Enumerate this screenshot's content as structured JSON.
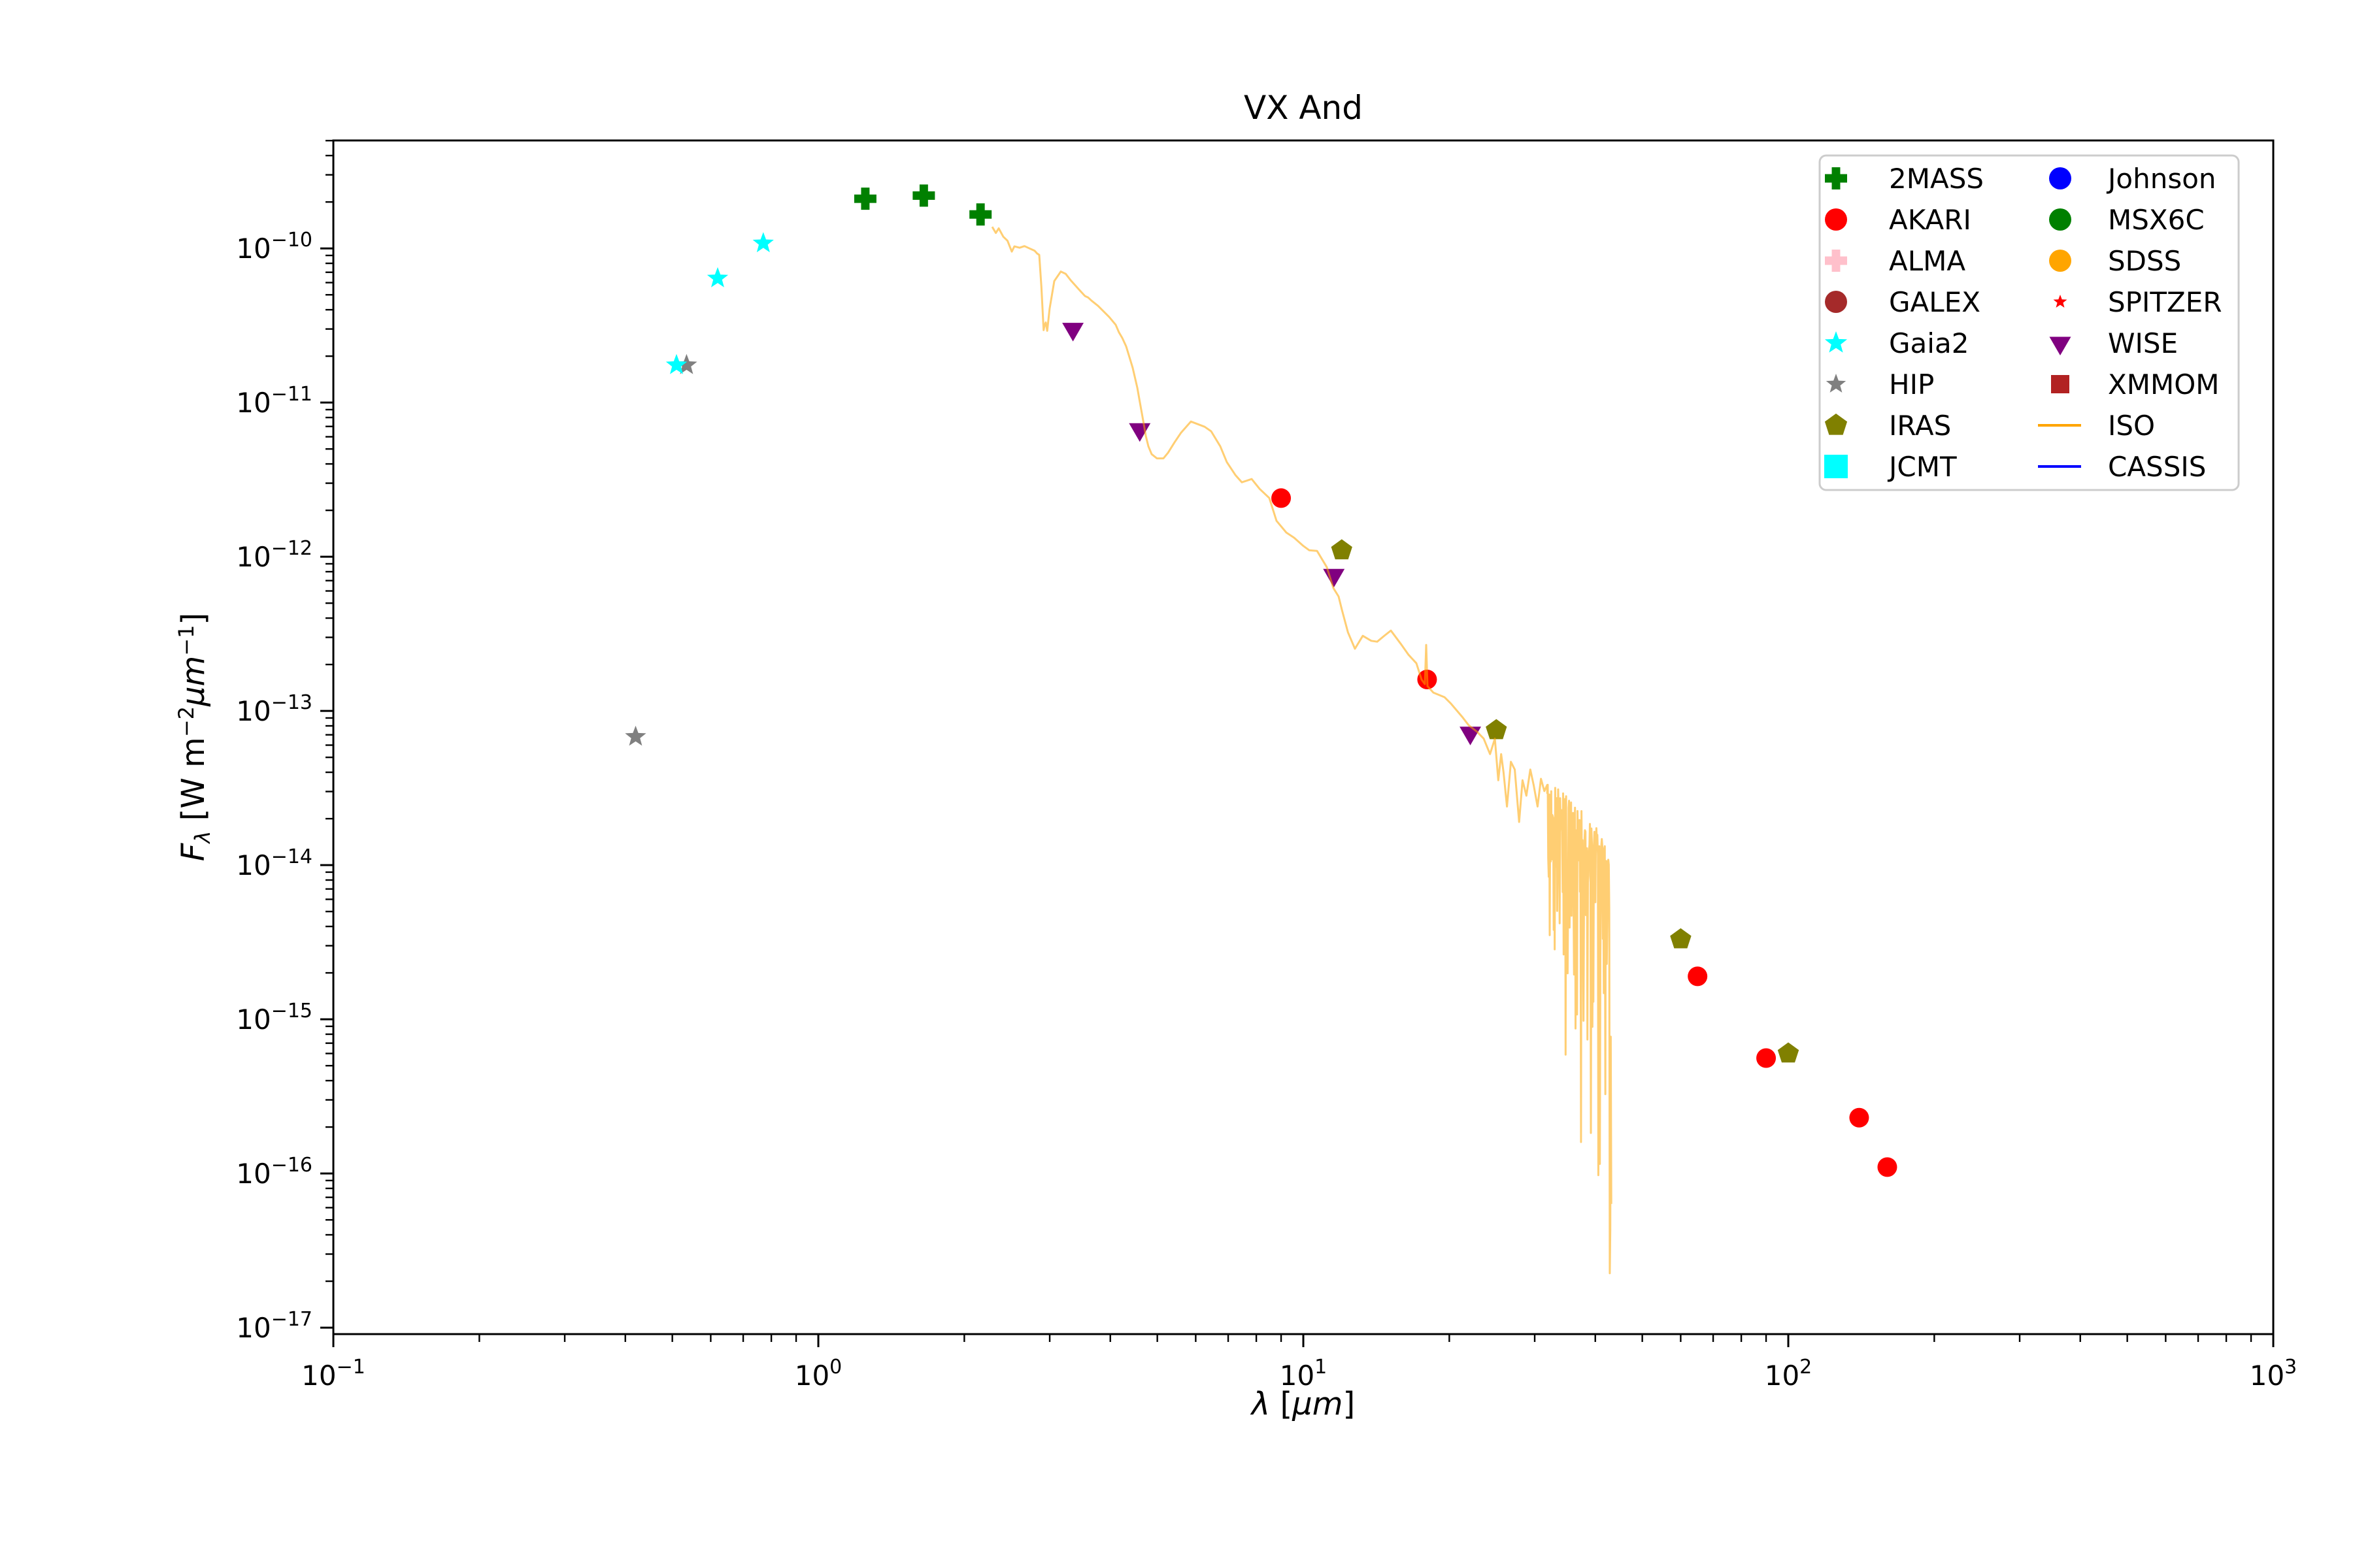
{
  "title": "VX And",
  "colors": {
    "background": "#ffffff",
    "axis": "#000000",
    "legend_border": "#cccccc",
    "iso_orange": "#ffa500",
    "cassis_blue": "#0000ff"
  },
  "axes": {
    "xlabel_parts": [
      {
        "t": "λ",
        "i": 1
      },
      {
        "t": " ["
      },
      {
        "t": "μm",
        "i": 1
      },
      {
        "t": "]"
      }
    ],
    "ylabel_parts": [
      {
        "t": "F",
        "i": 1
      },
      {
        "t": "λ",
        "v": "sub",
        "i": 1
      },
      {
        "t": " [W m"
      },
      {
        "t": "−2",
        "v": "sup"
      },
      {
        "t": "μm",
        "i": 1
      },
      {
        "t": "−1",
        "v": "sup"
      },
      {
        "t": "]"
      }
    ],
    "x_tick_base": "10",
    "x_tick_exponents": [
      -1,
      0,
      1,
      2,
      3
    ],
    "y_tick_base": "10",
    "y_tick_exponents": [
      -10,
      -11,
      -12,
      -13,
      -14,
      -15,
      -16,
      -17
    ],
    "xlim_log": [
      -1,
      3
    ],
    "ylim_log": [
      -17.042,
      -9.3
    ]
  },
  "legend": {
    "columns": [
      [
        {
          "label": "2MASS",
          "marker": "plus",
          "color": "#008000",
          "size": 34
        },
        {
          "label": "AKARI",
          "marker": "circle",
          "color": "#ff0000",
          "size": 17
        },
        {
          "label": "ALMA",
          "marker": "plus",
          "color": "#ffc0cb",
          "size": 34
        },
        {
          "label": "GALEX",
          "marker": "circle",
          "color": "#a52a2a",
          "size": 17
        },
        {
          "label": "Gaia2",
          "marker": "star",
          "color": "#00ffff",
          "size": 18
        },
        {
          "label": "HIP",
          "marker": "star",
          "color": "#808080",
          "size": 16
        },
        {
          "label": "IRAS",
          "marker": "pentagon",
          "color": "#808000",
          "size": 18
        },
        {
          "label": "JCMT",
          "marker": "square",
          "color": "#00ffff",
          "size": 36
        }
      ],
      [
        {
          "label": "Johnson",
          "marker": "circle",
          "color": "#0000ff",
          "size": 17
        },
        {
          "label": "MSX6C",
          "marker": "circle",
          "color": "#008000",
          "size": 17
        },
        {
          "label": "SDSS",
          "marker": "circle",
          "color": "#ffa500",
          "size": 17
        },
        {
          "label": "SPITZER",
          "marker": "star",
          "color": "#ff0000",
          "size": 11
        },
        {
          "label": "WISE",
          "marker": "triangle-down",
          "color": "#800080",
          "size": 19
        },
        {
          "label": "XMMOM",
          "marker": "square",
          "color": "#b22222",
          "size": 28
        },
        {
          "label": "ISO",
          "marker": "line",
          "color": "#ffa500",
          "size": 4
        },
        {
          "label": "CASSIS",
          "marker": "line",
          "color": "#0000ff",
          "size": 4
        }
      ]
    ]
  },
  "chart_data": {
    "type": "scatter",
    "x_scale": "log",
    "y_scale": "log",
    "xlabel": "λ [μm]",
    "ylabel": "F_λ [W m^-2 μm^-1]",
    "xlim": [
      0.1,
      1000
    ],
    "ylim": [
      9.1e-18,
      5e-10
    ],
    "grid": false,
    "legend_position": "upper right",
    "series": [
      {
        "name": "2MASS",
        "marker": "plus",
        "color": "#008000",
        "points": [
          [
            1.25,
            2.1e-10
          ],
          [
            1.65,
            2.2e-10
          ],
          [
            2.16,
            1.66e-10
          ]
        ]
      },
      {
        "name": "AKARI",
        "marker": "circle",
        "color": "#ff0000",
        "points": [
          [
            9.0,
            2.4e-12
          ],
          [
            18.0,
            1.6e-13
          ],
          [
            65.0,
            1.9e-15
          ],
          [
            90.0,
            5.6e-16
          ],
          [
            140.0,
            2.3e-16
          ],
          [
            160.0,
            1.1e-16
          ]
        ]
      },
      {
        "name": "HIP",
        "marker": "star",
        "color": "#808080",
        "points": [
          [
            0.42,
            6.8e-14
          ],
          [
            0.535,
            1.75e-11
          ]
        ]
      },
      {
        "name": "Gaia2",
        "marker": "star",
        "color": "#00ffff",
        "points": [
          [
            0.51,
            1.75e-11
          ],
          [
            0.62,
            6.4e-11
          ],
          [
            0.77,
            1.08e-10
          ]
        ]
      },
      {
        "name": "IRAS",
        "marker": "pentagon",
        "color": "#808000",
        "points": [
          [
            12.0,
            1.1e-12
          ],
          [
            25.0,
            7.5e-14
          ],
          [
            60.0,
            3.3e-15
          ],
          [
            100.0,
            6e-16
          ]
        ]
      },
      {
        "name": "WISE",
        "marker": "triangle-down",
        "color": "#800080",
        "points": [
          [
            3.35,
            3e-11
          ],
          [
            4.6,
            6.7e-12
          ],
          [
            11.56,
            7.6e-13
          ],
          [
            22.1,
            7.2e-14
          ]
        ]
      }
    ],
    "iso_spectrum": {
      "name": "ISO",
      "color": "#ffa500",
      "opacity": 0.55,
      "stroke_width": 3,
      "path_log": [
        [
          0.3585,
          -9.86
        ],
        [
          0.366,
          -9.9
        ],
        [
          0.372,
          -9.87
        ],
        [
          0.3814,
          -9.924
        ],
        [
          0.39,
          -9.95
        ],
        [
          0.3989,
          -10.021
        ],
        [
          0.4043,
          -9.987
        ],
        [
          0.4151,
          -9.996
        ],
        [
          0.425,
          -9.985
        ],
        [
          0.4353,
          -10.0
        ],
        [
          0.446,
          -10.015
        ],
        [
          0.4515,
          -10.034
        ],
        [
          0.4555,
          -10.042
        ],
        [
          0.46,
          -10.25
        ],
        [
          0.4645,
          -10.53
        ],
        [
          0.4665,
          -10.5
        ],
        [
          0.469,
          -10.48
        ],
        [
          0.472,
          -10.535
        ],
        [
          0.477,
          -10.39
        ],
        [
          0.4865,
          -10.212
        ],
        [
          0.5,
          -10.15
        ],
        [
          0.51,
          -10.165
        ],
        [
          0.52,
          -10.205
        ],
        [
          0.5364,
          -10.263
        ],
        [
          0.5499,
          -10.309
        ],
        [
          0.556,
          -10.318
        ],
        [
          0.5633,
          -10.339
        ],
        [
          0.5768,
          -10.373
        ],
        [
          0.5997,
          -10.445
        ],
        [
          0.6132,
          -10.496
        ],
        [
          0.62,
          -10.545
        ],
        [
          0.6267,
          -10.581
        ],
        [
          0.6348,
          -10.636
        ],
        [
          0.6482,
          -10.775
        ],
        [
          0.6577,
          -10.903
        ],
        [
          0.6617,
          -10.975
        ],
        [
          0.6684,
          -11.093
        ],
        [
          0.672,
          -11.155
        ],
        [
          0.6752,
          -11.216
        ],
        [
          0.6806,
          -11.284
        ],
        [
          0.6873,
          -11.335
        ],
        [
          0.6981,
          -11.362
        ],
        [
          0.7116,
          -11.362
        ],
        [
          0.721,
          -11.326
        ],
        [
          0.7345,
          -11.258
        ],
        [
          0.748,
          -11.195
        ],
        [
          0.7682,
          -11.123
        ],
        [
          0.7965,
          -11.157
        ],
        [
          0.81,
          -11.186
        ],
        [
          0.8289,
          -11.284
        ],
        [
          0.8423,
          -11.386
        ],
        [
          0.86,
          -11.47
        ],
        [
          0.8733,
          -11.517
        ],
        [
          0.8935,
          -11.496
        ],
        [
          0.91,
          -11.56
        ],
        [
          0.9299,
          -11.619
        ],
        [
          0.9447,
          -11.767
        ],
        [
          0.965,
          -11.843
        ],
        [
          0.9811,
          -11.877
        ],
        [
          1.0,
          -11.93
        ],
        [
          1.0121,
          -11.958
        ],
        [
          1.0283,
          -11.962
        ],
        [
          1.0485,
          -12.068
        ],
        [
          1.062,
          -12.203
        ],
        [
          1.0728,
          -12.258
        ],
        [
          1.0795,
          -12.343
        ],
        [
          1.092,
          -12.49
        ],
        [
          1.1065,
          -12.597
        ],
        [
          1.1226,
          -12.513
        ],
        [
          1.14,
          -12.545
        ],
        [
          1.1523,
          -12.551
        ],
        [
          1.168,
          -12.51
        ],
        [
          1.1806,
          -12.479
        ],
        [
          1.2008,
          -12.564
        ],
        [
          1.217,
          -12.636
        ],
        [
          1.2332,
          -12.691
        ],
        [
          1.244,
          -12.797
        ],
        [
          1.2507,
          -12.826
        ],
        [
          1.2534,
          -12.572
        ],
        [
          1.2561,
          -12.839
        ],
        [
          1.2682,
          -12.881
        ],
        [
          1.2911,
          -12.911
        ],
        [
          1.3046,
          -12.953
        ],
        [
          1.3275,
          -13.038
        ],
        [
          1.341,
          -13.093
        ],
        [
          1.3585,
          -13.136
        ],
        [
          1.372,
          -13.18
        ],
        [
          1.385,
          -13.28
        ],
        [
          1.395,
          -13.18
        ],
        [
          1.402,
          -13.45
        ],
        [
          1.408,
          -13.28
        ],
        [
          1.413,
          -13.4
        ],
        [
          1.42,
          -13.62
        ],
        [
          1.428,
          -13.33
        ],
        [
          1.436,
          -13.38
        ],
        [
          1.445,
          -13.72
        ],
        [
          1.452,
          -13.45
        ],
        [
          1.46,
          -13.55
        ],
        [
          1.468,
          -13.38
        ],
        [
          1.475,
          -13.48
        ],
        [
          1.483,
          -13.62
        ],
        [
          1.49,
          -13.44
        ],
        [
          1.497,
          -13.52
        ],
        [
          1.503,
          -13.48
        ]
      ],
      "noise_tail": {
        "seed": 42,
        "n": 130,
        "log_x_start": 1.503,
        "log_x_end": 1.635,
        "trend_start": -13.52,
        "trend_end": -14.0,
        "jitter": 0.13,
        "spike_prob": 0.45,
        "spike_min": 0.3,
        "spike_max": 2.95,
        "floor_log": -16.82
      }
    },
    "cassis_spectrum": {
      "name": "CASSIS",
      "color": "#0000ff",
      "points": []
    }
  }
}
